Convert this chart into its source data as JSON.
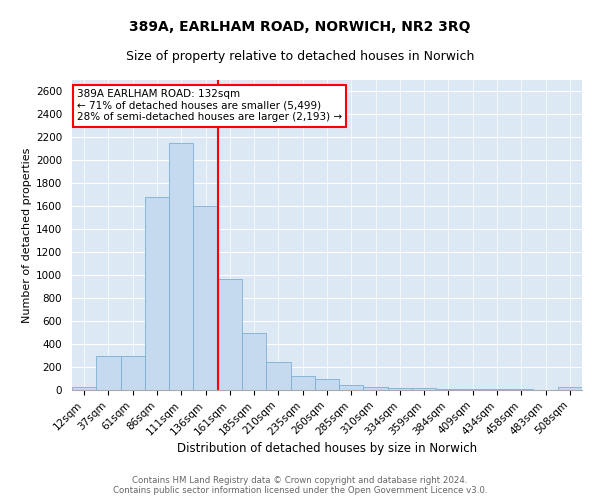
{
  "title": "389A, EARLHAM ROAD, NORWICH, NR2 3RQ",
  "subtitle": "Size of property relative to detached houses in Norwich",
  "xlabel": "Distribution of detached houses by size in Norwich",
  "ylabel": "Number of detached properties",
  "bar_color": "#c5d9ef",
  "bar_edge_color": "#7bafd4",
  "vline_color": "red",
  "annotation_text": "389A EARLHAM ROAD: 132sqm\n← 71% of detached houses are smaller (5,499)\n28% of semi-detached houses are larger (2,193) →",
  "annotation_box_color": "white",
  "annotation_box_edge_color": "red",
  "footer_line1": "Contains HM Land Registry data © Crown copyright and database right 2024.",
  "footer_line2": "Contains public sector information licensed under the Open Government Licence v3.0.",
  "categories": [
    "12sqm",
    "37sqm",
    "61sqm",
    "86sqm",
    "111sqm",
    "136sqm",
    "161sqm",
    "185sqm",
    "210sqm",
    "235sqm",
    "260sqm",
    "285sqm",
    "310sqm",
    "334sqm",
    "359sqm",
    "384sqm",
    "409sqm",
    "434sqm",
    "458sqm",
    "483sqm",
    "508sqm"
  ],
  "values": [
    25,
    300,
    300,
    1680,
    2150,
    1600,
    970,
    500,
    245,
    125,
    100,
    40,
    25,
    20,
    15,
    10,
    8,
    6,
    5,
    4,
    25
  ],
  "vline_idx": 5,
  "ylim": [
    0,
    2700
  ],
  "yticks": [
    0,
    200,
    400,
    600,
    800,
    1000,
    1200,
    1400,
    1600,
    1800,
    2000,
    2200,
    2400,
    2600
  ],
  "background_color": "#dde8f5",
  "grid_color": "#ffffff",
  "title_fontsize": 10,
  "subtitle_fontsize": 9,
  "ylabel_fontsize": 8,
  "xlabel_fontsize": 8.5,
  "tick_fontsize": 7.5,
  "footer_fontsize": 6.2,
  "annot_fontsize": 7.5
}
